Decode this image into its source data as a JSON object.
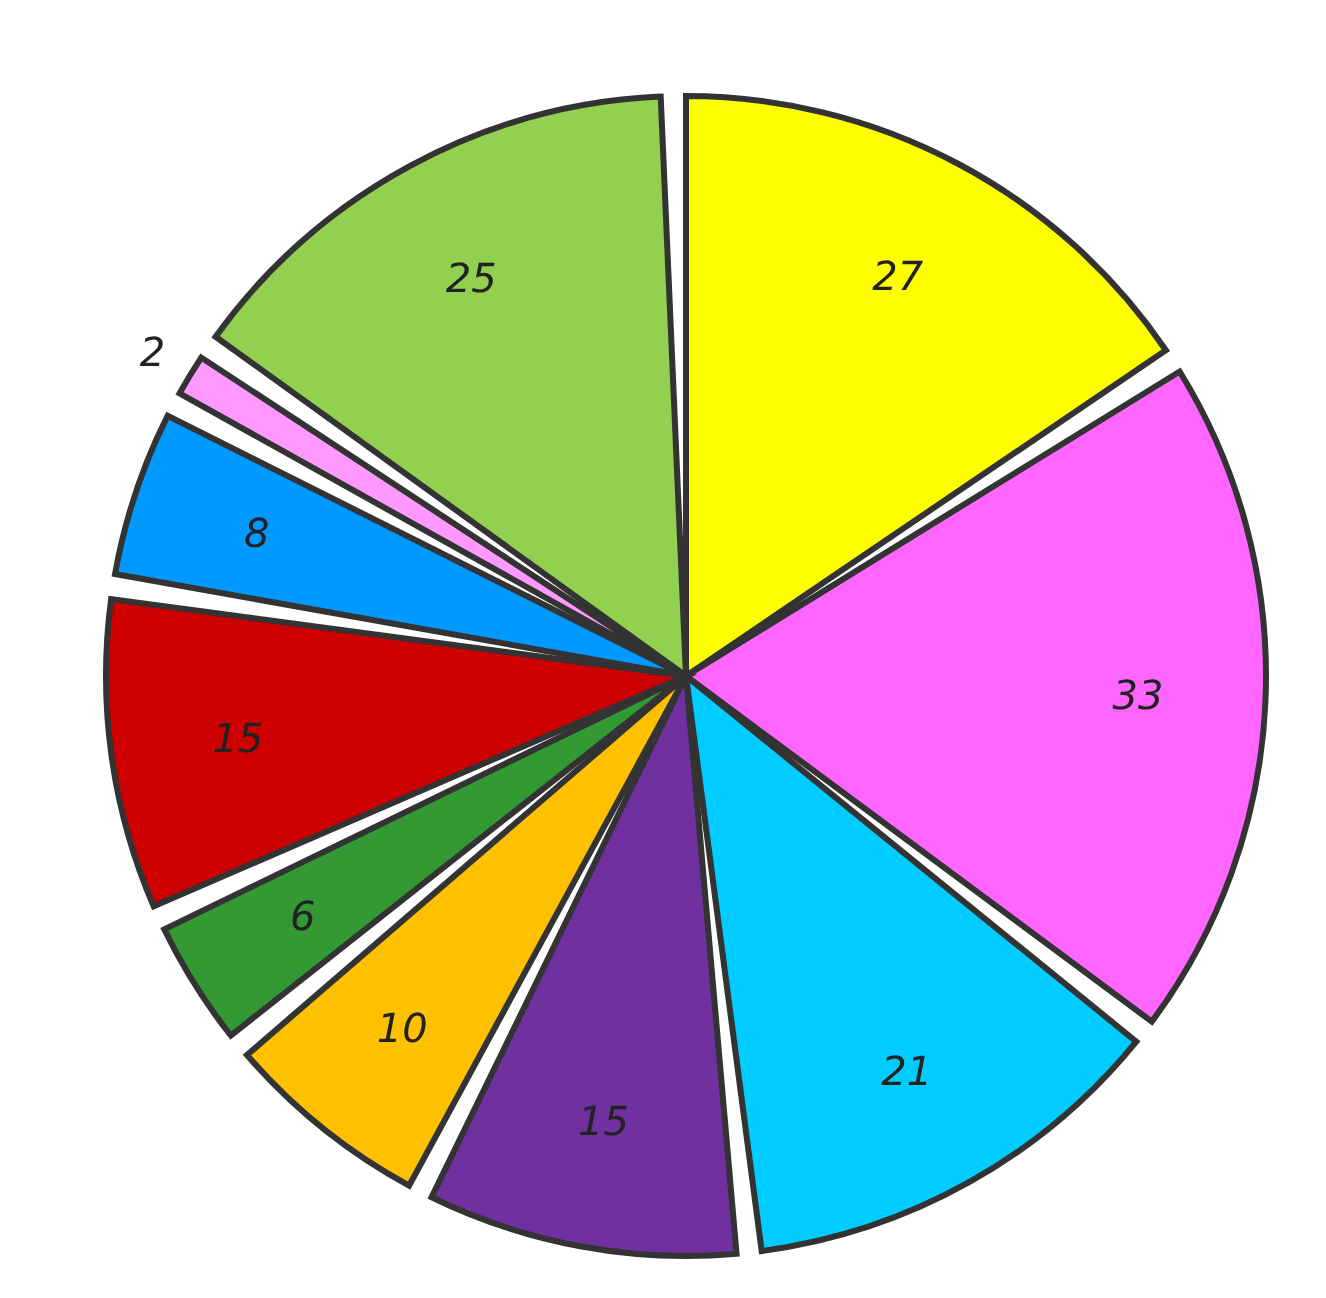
{
  "chart_data": {
    "type": "pie",
    "categories": [
      null,
      null,
      null,
      null,
      null,
      null,
      null,
      null,
      null,
      null
    ],
    "values": [
      27,
      33,
      21,
      15,
      10,
      6,
      15,
      8,
      2,
      25
    ],
    "colors": [
      "#ffff00",
      "#ff66ff",
      "#00ccff",
      "#7030a0",
      "#ffc000",
      "#339933",
      "#cc0000",
      "#0099ff",
      "#ff99ff",
      "#92d050"
    ],
    "data_labels": true,
    "legend": false
  }
}
